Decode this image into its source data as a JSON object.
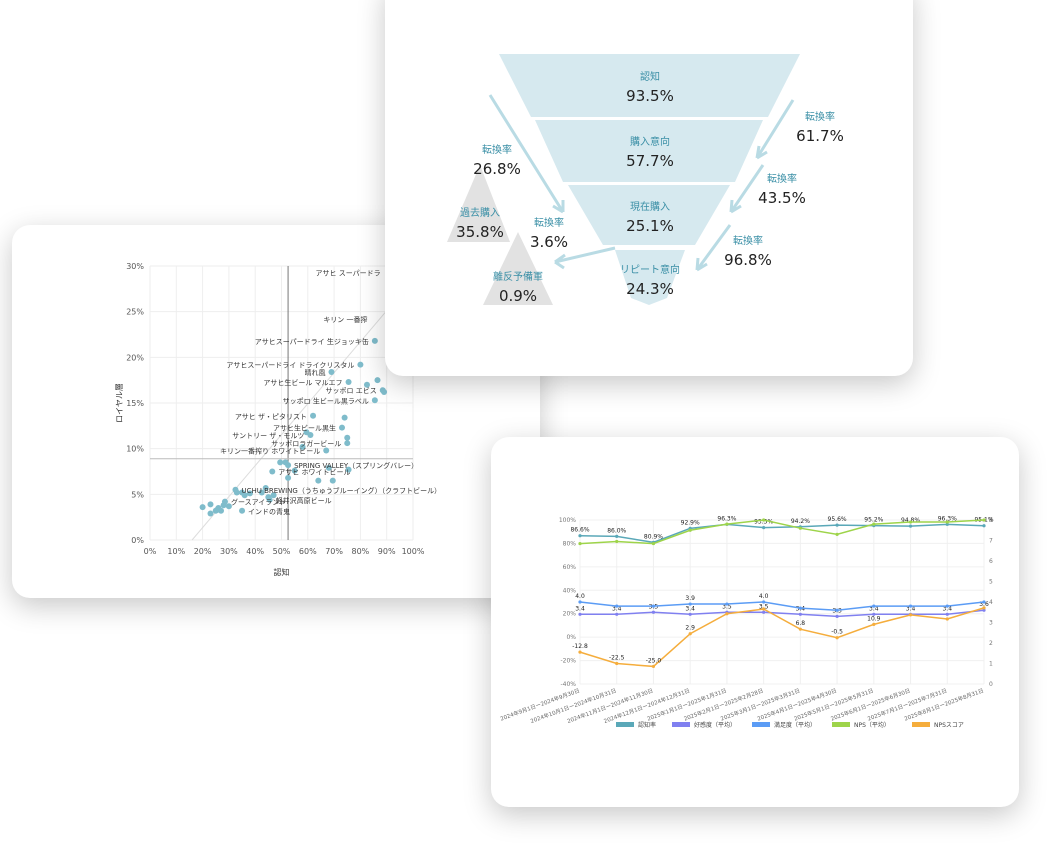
{
  "chart_data": [
    {
      "type": "scatter",
      "title": "",
      "xlabel": "認知",
      "ylabel": "ロイヤル層",
      "xlim": [
        0,
        100
      ],
      "ylim": [
        0,
        30
      ],
      "xticks": [
        "0%",
        "10%",
        "20%",
        "30%",
        "40%",
        "50%",
        "60%",
        "70%",
        "80%",
        "90%",
        "100%"
      ],
      "yticks": [
        "0%",
        "5%",
        "10%",
        "15%",
        "20%",
        "25%",
        "30%"
      ],
      "reference_x": 52.5,
      "reference_y": 8.9,
      "color": "#7fbccb",
      "labels": [
        {
          "text": "アサヒ スーパードラ",
          "x": 90,
          "y": 29.3
        },
        {
          "text": "キリン 一番搾",
          "x": 85,
          "y": 24.2
        },
        {
          "text": "アサヒスーパードライ 生ジョッキ缶",
          "x": 85.5,
          "y": 21.8
        },
        {
          "text": "アサヒスーパードライ ドライクリスタル",
          "x": 80,
          "y": 19.2
        },
        {
          "text": "晴れ風",
          "x": 69,
          "y": 18.4
        },
        {
          "text": "アサヒ生ビール マルエフ",
          "x": 75.5,
          "y": 17.3
        },
        {
          "text": "サッポロ エビス",
          "x": 88.5,
          "y": 16.4
        },
        {
          "text": "サッポロ 生ビール黒ラベル",
          "x": 85.5,
          "y": 15.3
        },
        {
          "text": "アサヒ ザ・ピタリスト",
          "x": 62,
          "y": 13.6
        },
        {
          "text": "アサヒ生ビール黒生",
          "x": 73,
          "y": 12.3
        },
        {
          "text": "サントリー ザ・モルツ",
          "x": 61,
          "y": 11.5
        },
        {
          "text": "サッポロラガービール",
          "x": 75,
          "y": 10.6
        },
        {
          "text": "キリン一番搾り ホワイトビール",
          "x": 67,
          "y": 9.8
        },
        {
          "text": "SPRING VALLEY（スプリングバレー）",
          "x": 52.5,
          "y": 8.2
        },
        {
          "text": "アサヒ ホワイトビール",
          "x": 46.5,
          "y": 7.5
        },
        {
          "text": "UCHU BREWING（うちゅうブルーイング）（クラフトビール）",
          "x": 32.5,
          "y": 5.5
        },
        {
          "text": "軽井沢高原ビール",
          "x": 45.5,
          "y": 4.4
        },
        {
          "text": "グースアイランド",
          "x": 28.5,
          "y": 4.2
        },
        {
          "text": "インドの青鬼",
          "x": 35,
          "y": 3.2
        }
      ],
      "points": [
        [
          85.5,
          21.8
        ],
        [
          80,
          19.2
        ],
        [
          69,
          18.4
        ],
        [
          75.5,
          17.3
        ],
        [
          82.5,
          17.0
        ],
        [
          86.5,
          17.5
        ],
        [
          88.5,
          16.4
        ],
        [
          89,
          16.2
        ],
        [
          85.5,
          15.3
        ],
        [
          62,
          13.6
        ],
        [
          74,
          13.4
        ],
        [
          73,
          12.3
        ],
        [
          59.5,
          11.8
        ],
        [
          61,
          11.5
        ],
        [
          75,
          11.2
        ],
        [
          75,
          10.6
        ],
        [
          58,
          10.2
        ],
        [
          67,
          9.8
        ],
        [
          49.5,
          8.5
        ],
        [
          51.5,
          8.5
        ],
        [
          52.5,
          8.2
        ],
        [
          68,
          7.9
        ],
        [
          75.5,
          7.7
        ],
        [
          46.5,
          7.5
        ],
        [
          55,
          7.6
        ],
        [
          52.5,
          6.8
        ],
        [
          64,
          6.5
        ],
        [
          69.5,
          6.5
        ],
        [
          32.5,
          5.5
        ],
        [
          33,
          5.2
        ],
        [
          35,
          5.2
        ],
        [
          36,
          4.9
        ],
        [
          38,
          5.1
        ],
        [
          42.5,
          5.2
        ],
        [
          44,
          5.7
        ],
        [
          45,
          4.7
        ],
        [
          47,
          4.9
        ],
        [
          45.5,
          4.4
        ],
        [
          28.5,
          4.2
        ],
        [
          28,
          3.8
        ],
        [
          30,
          3.7
        ],
        [
          23,
          3.9
        ],
        [
          20,
          3.6
        ],
        [
          25.5,
          3.3
        ],
        [
          26,
          3.5
        ],
        [
          23,
          2.9
        ],
        [
          25,
          3.2
        ],
        [
          27,
          3.2
        ],
        [
          35,
          3.2
        ]
      ]
    },
    {
      "type": "funnel",
      "stages": [
        {
          "label": "認知",
          "value": "93.5%"
        },
        {
          "label": "購入意向",
          "value": "57.7%"
        },
        {
          "label": "現在購入",
          "value": "25.1%"
        },
        {
          "label": "リピート意向",
          "value": "24.3%"
        }
      ],
      "side": [
        {
          "label": "過去購入",
          "value": "35.8%"
        },
        {
          "label": "離反予備軍",
          "value": "0.9%"
        }
      ],
      "conversions": [
        {
          "label": "転換率",
          "value": "61.7%"
        },
        {
          "label": "転換率",
          "value": "43.5%"
        },
        {
          "label": "転換率",
          "value": "96.8%"
        },
        {
          "label": "転換率",
          "value": "26.8%"
        },
        {
          "label": "転換率",
          "value": "3.6%"
        }
      ]
    },
    {
      "type": "line",
      "categories": [
        "2024年9月1日ー2024年9月30日",
        "2024年10月1日ー2024年10月31日",
        "2024年11月1日ー2024年11月30日",
        "2024年12月1日ー2024年12月31日",
        "2025年1月1日ー2025年1月31日",
        "2025年2月1日ー2025年2月28日",
        "2025年3月1日ー2025年3月31日",
        "2025年4月1日ー2025年4月30日",
        "2025年5月1日ー2025年5月31日",
        "2025年6月1日ー2025年6月30日",
        "2025年7月1日ー2025年7月31日",
        "2025年8月1日ー2025年8月31日"
      ],
      "ylim": [
        -40,
        100
      ],
      "y2lim": [
        0,
        8
      ],
      "yticks": [
        "100%",
        "80%",
        "60%",
        "40%",
        "20%",
        "0%",
        "-20%",
        "-40%"
      ],
      "y2ticks": [
        "8",
        "7",
        "6",
        "5",
        "4",
        "3",
        "2",
        "1",
        "0"
      ],
      "series": [
        {
          "name": "認知率",
          "axis": "left",
          "color": "#5aa8b8",
          "values": [
            86.6,
            86.0,
            80.9,
            92.9,
            96.3,
            93.5,
            94.2,
            95.6,
            95.2,
            94.8,
            96.3,
            95.1
          ],
          "labels": [
            "86.6%",
            "86.0%",
            "80.9%",
            "92.9%",
            "96.3%",
            "93.5%",
            "94.2%",
            "95.6%",
            "95.2%",
            "94.8%",
            "96.3%",
            "95.1%"
          ]
        },
        {
          "name": "好感度（平均）",
          "axis": "right",
          "color": "#8080f0",
          "values": [
            3.4,
            3.4,
            3.5,
            3.4,
            3.5,
            3.5,
            3.4,
            3.3,
            3.4,
            3.4,
            3.4,
            3.6
          ],
          "labels": [
            "3.4",
            "3.4",
            "3.5",
            "3.4",
            "3.5",
            "3.5",
            "3.4",
            "3.3",
            "3.4",
            "3.4",
            "3.4",
            "3.6"
          ]
        },
        {
          "name": "満足度（平均）",
          "axis": "right",
          "color": "#5b9cf5",
          "values": [
            4.0,
            3.8,
            3.8,
            3.9,
            3.9,
            4.0,
            3.7,
            3.6,
            3.8,
            3.8,
            3.8,
            4.0
          ],
          "labels": [
            "4.0",
            "",
            "",
            "3.9",
            "",
            "4.0",
            "",
            "",
            "",
            "",
            "",
            ""
          ]
        },
        {
          "name": "NPS（平均）",
          "axis": "right",
          "color": "#9ed44a",
          "values": [
            6.85,
            6.95,
            6.85,
            7.5,
            7.8,
            8.0,
            7.6,
            7.3,
            7.8,
            7.9,
            7.9,
            8.0
          ],
          "labels": []
        },
        {
          "name": "NPSスコア",
          "axis": "left",
          "color": "#f5ad3c",
          "values": [
            -12.8,
            -22.5,
            -25.0,
            2.9,
            20,
            24,
            6.8,
            -0.5,
            10.9,
            19,
            15.5,
            25
          ],
          "labels": [
            "-12.8",
            "-22.5",
            "-25.0",
            "2.9",
            "",
            "",
            "6.8",
            "-0.5",
            "10.9",
            "",
            "",
            ""
          ]
        }
      ]
    }
  ]
}
